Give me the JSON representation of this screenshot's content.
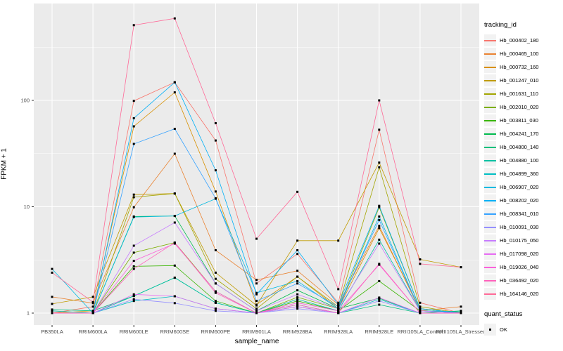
{
  "chart_data": {
    "type": "line",
    "title": "",
    "xlabel": "sample_name",
    "ylabel": "FPKM + 1",
    "y_scale": "log10",
    "y_ticks": [
      1,
      10,
      100
    ],
    "y_minor": [
      3.162,
      31.62,
      316.2
    ],
    "ylim_log": [
      -0.115,
      2.915
    ],
    "grid": "on",
    "legend_position": "right",
    "categories": [
      "PB350LA",
      "RRIM600LA",
      "RRIM600LE",
      "RRIM600SE",
      "RRIM600PE",
      "RRIM901LA",
      "RRIM928BA",
      "RRIM928LA",
      "RRIM928LE",
      "RRII105LA_Control",
      "RRII105LA_Stressed"
    ],
    "series": [
      {
        "name": "Hb_000402_180",
        "color": "#F8766D",
        "values": [
          1.0,
          1.15,
          99,
          148,
          42,
          1.9,
          3.6,
          1.25,
          53,
          1.25,
          1.0
        ]
      },
      {
        "name": "Hb_000465_100",
        "color": "#EA8331",
        "values": [
          1.42,
          1.24,
          9.9,
          31.5,
          3.9,
          2.05,
          2.5,
          1.2,
          6.6,
          1.05,
          1.15
        ]
      },
      {
        "name": "Hb_000732_160",
        "color": "#D89000",
        "values": [
          1.0,
          1.05,
          57,
          119,
          13.9,
          1.2,
          2.2,
          1.1,
          6.3,
          1.1,
          1.0
        ]
      },
      {
        "name": "Hb_001247_010",
        "color": "#C09B00",
        "values": [
          1.22,
          1.42,
          13.0,
          13.3,
          2.4,
          1.18,
          4.8,
          4.8,
          26,
          3.2,
          2.7
        ]
      },
      {
        "name": "Hb_001631_110",
        "color": "#A3A500",
        "values": [
          1.0,
          1.0,
          12.3,
          13.3,
          2.1,
          1.1,
          2.2,
          1.15,
          23.5,
          1.15,
          1.0
        ]
      },
      {
        "name": "Hb_002010_020",
        "color": "#7CAE00",
        "values": [
          1.0,
          1.0,
          3.7,
          4.6,
          1.6,
          1.0,
          1.41,
          1.1,
          9.9,
          1.1,
          1.0
        ]
      },
      {
        "name": "Hb_003811_030",
        "color": "#39B600",
        "values": [
          1.0,
          1.0,
          2.75,
          2.8,
          1.3,
          1.0,
          1.3,
          1.05,
          2.0,
          1.05,
          1.0
        ]
      },
      {
        "name": "Hb_004241_170",
        "color": "#00BB4E",
        "values": [
          1.0,
          1.0,
          8.1,
          8.2,
          1.9,
          1.05,
          1.64,
          1.1,
          1.38,
          1.0,
          1.0
        ]
      },
      {
        "name": "Hb_004800_140",
        "color": "#00BF7D",
        "values": [
          1.08,
          1.05,
          1.45,
          2.15,
          1.25,
          1.0,
          1.2,
          1.0,
          1.2,
          1.0,
          1.05
        ]
      },
      {
        "name": "Hb_004880_100",
        "color": "#00C1A3",
        "values": [
          1.05,
          1.0,
          1.45,
          2.15,
          1.25,
          1.0,
          1.35,
          1.05,
          4.9,
          1.05,
          1.03
        ]
      },
      {
        "name": "Hb_004899_360",
        "color": "#00BFC4",
        "values": [
          1.0,
          1.0,
          1.3,
          1.44,
          1.1,
          1.0,
          1.15,
          1.0,
          1.35,
          1.0,
          1.0
        ]
      },
      {
        "name": "Hb_006907_020",
        "color": "#00BAE0",
        "values": [
          2.6,
          1.0,
          8.0,
          8.2,
          11.9,
          1.55,
          2.0,
          1.1,
          8.1,
          1.05,
          1.0
        ]
      },
      {
        "name": "Hb_008202_020",
        "color": "#00B0F6",
        "values": [
          1.0,
          1.0,
          68,
          148,
          22,
          1.5,
          3.9,
          1.2,
          10.2,
          1.1,
          1.0
        ]
      },
      {
        "name": "Hb_008341_010",
        "color": "#35A2FF",
        "values": [
          1.0,
          1.0,
          39,
          54,
          12,
          1.3,
          1.9,
          1.15,
          7.5,
          1.05,
          1.0
        ]
      },
      {
        "name": "Hb_010091_030",
        "color": "#9590FF",
        "values": [
          1.0,
          1.0,
          1.35,
          1.24,
          1.05,
          1.0,
          1.1,
          1.0,
          1.3,
          1.0,
          1.0
        ]
      },
      {
        "name": "Hb_010175_050",
        "color": "#C77CFF",
        "values": [
          1.0,
          1.0,
          4.3,
          7.1,
          1.9,
          1.05,
          1.5,
          1.1,
          4.5,
          1.05,
          1.0
        ]
      },
      {
        "name": "Hb_017098_020",
        "color": "#E76BF3",
        "values": [
          1.0,
          1.0,
          1.5,
          1.44,
          1.1,
          1.0,
          1.15,
          1.0,
          1.4,
          1.0,
          1.0
        ]
      },
      {
        "name": "Hb_019026_040",
        "color": "#FA62DB",
        "values": [
          1.0,
          1.0,
          3.1,
          4.5,
          1.6,
          1.0,
          1.25,
          1.05,
          2.85,
          1.0,
          1.0
        ]
      },
      {
        "name": "Hb_036492_020",
        "color": "#FF62BC",
        "values": [
          1.0,
          1.0,
          2.6,
          4.6,
          1.55,
          1.0,
          1.2,
          1.0,
          2.9,
          1.0,
          1.0
        ]
      },
      {
        "name": "Hb_164146_020",
        "color": "#FF6A98",
        "values": [
          2.4,
          1.27,
          510,
          590,
          61,
          5.0,
          13.8,
          1.68,
          100,
          2.9,
          2.7
        ]
      }
    ]
  },
  "legend": {
    "color_title": "tracking_id",
    "shape_title": "quant_status",
    "shape_items": [
      {
        "label": "OK",
        "marker": "black-square"
      }
    ]
  },
  "axes": {
    "x_title": "sample_name",
    "y_title": "FPKM + 1",
    "y_tick_labels": [
      "1",
      "10",
      "100"
    ]
  },
  "colors": {
    "panel_bg": "#EBEBEB",
    "grid": "#FFFFFF",
    "tick_text": "#4D4D4D",
    "point": "#000000",
    "legend_key_bg": "#F2F2F2"
  }
}
